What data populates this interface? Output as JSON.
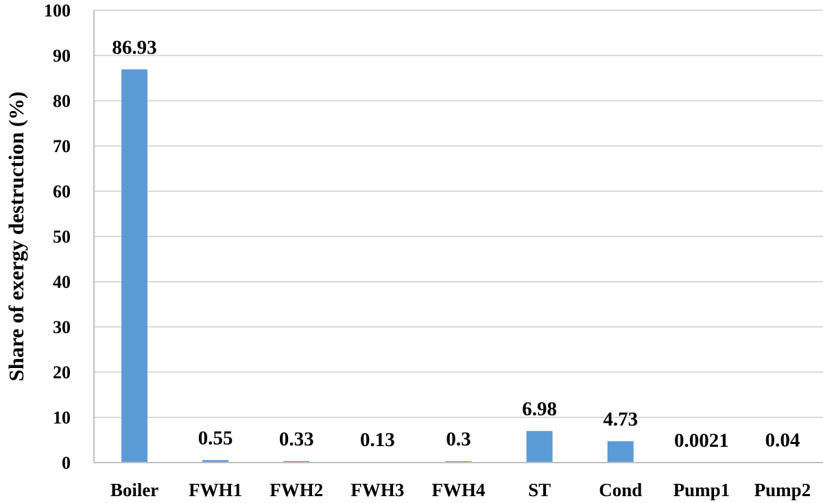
{
  "chart_data": {
    "type": "bar",
    "title": "",
    "xlabel": "",
    "ylabel": "Share of exergy destruction (%)",
    "categories": [
      "Boiler",
      "FWH1",
      "FWH2",
      "FWH3",
      "FWH4",
      "ST",
      "Cond",
      "Pump1",
      "Pump2"
    ],
    "values": [
      86.93,
      0.55,
      0.33,
      0.13,
      0.3,
      6.98,
      4.73,
      0.0021,
      0.04
    ],
    "data_labels": [
      "86.93",
      "0.55",
      "0.33",
      "0.13",
      "0.3",
      "6.98",
      "4.73",
      "0.0021",
      "0.04"
    ],
    "ylim": [
      0,
      100
    ],
    "yticks": [
      0,
      10,
      20,
      30,
      40,
      50,
      60,
      70,
      80,
      90,
      100
    ],
    "grid": true,
    "legend": "none",
    "bar_color": "#5b9bd5",
    "grid_color": "#d9d9d9",
    "axis_color": "#bfbfbf"
  }
}
